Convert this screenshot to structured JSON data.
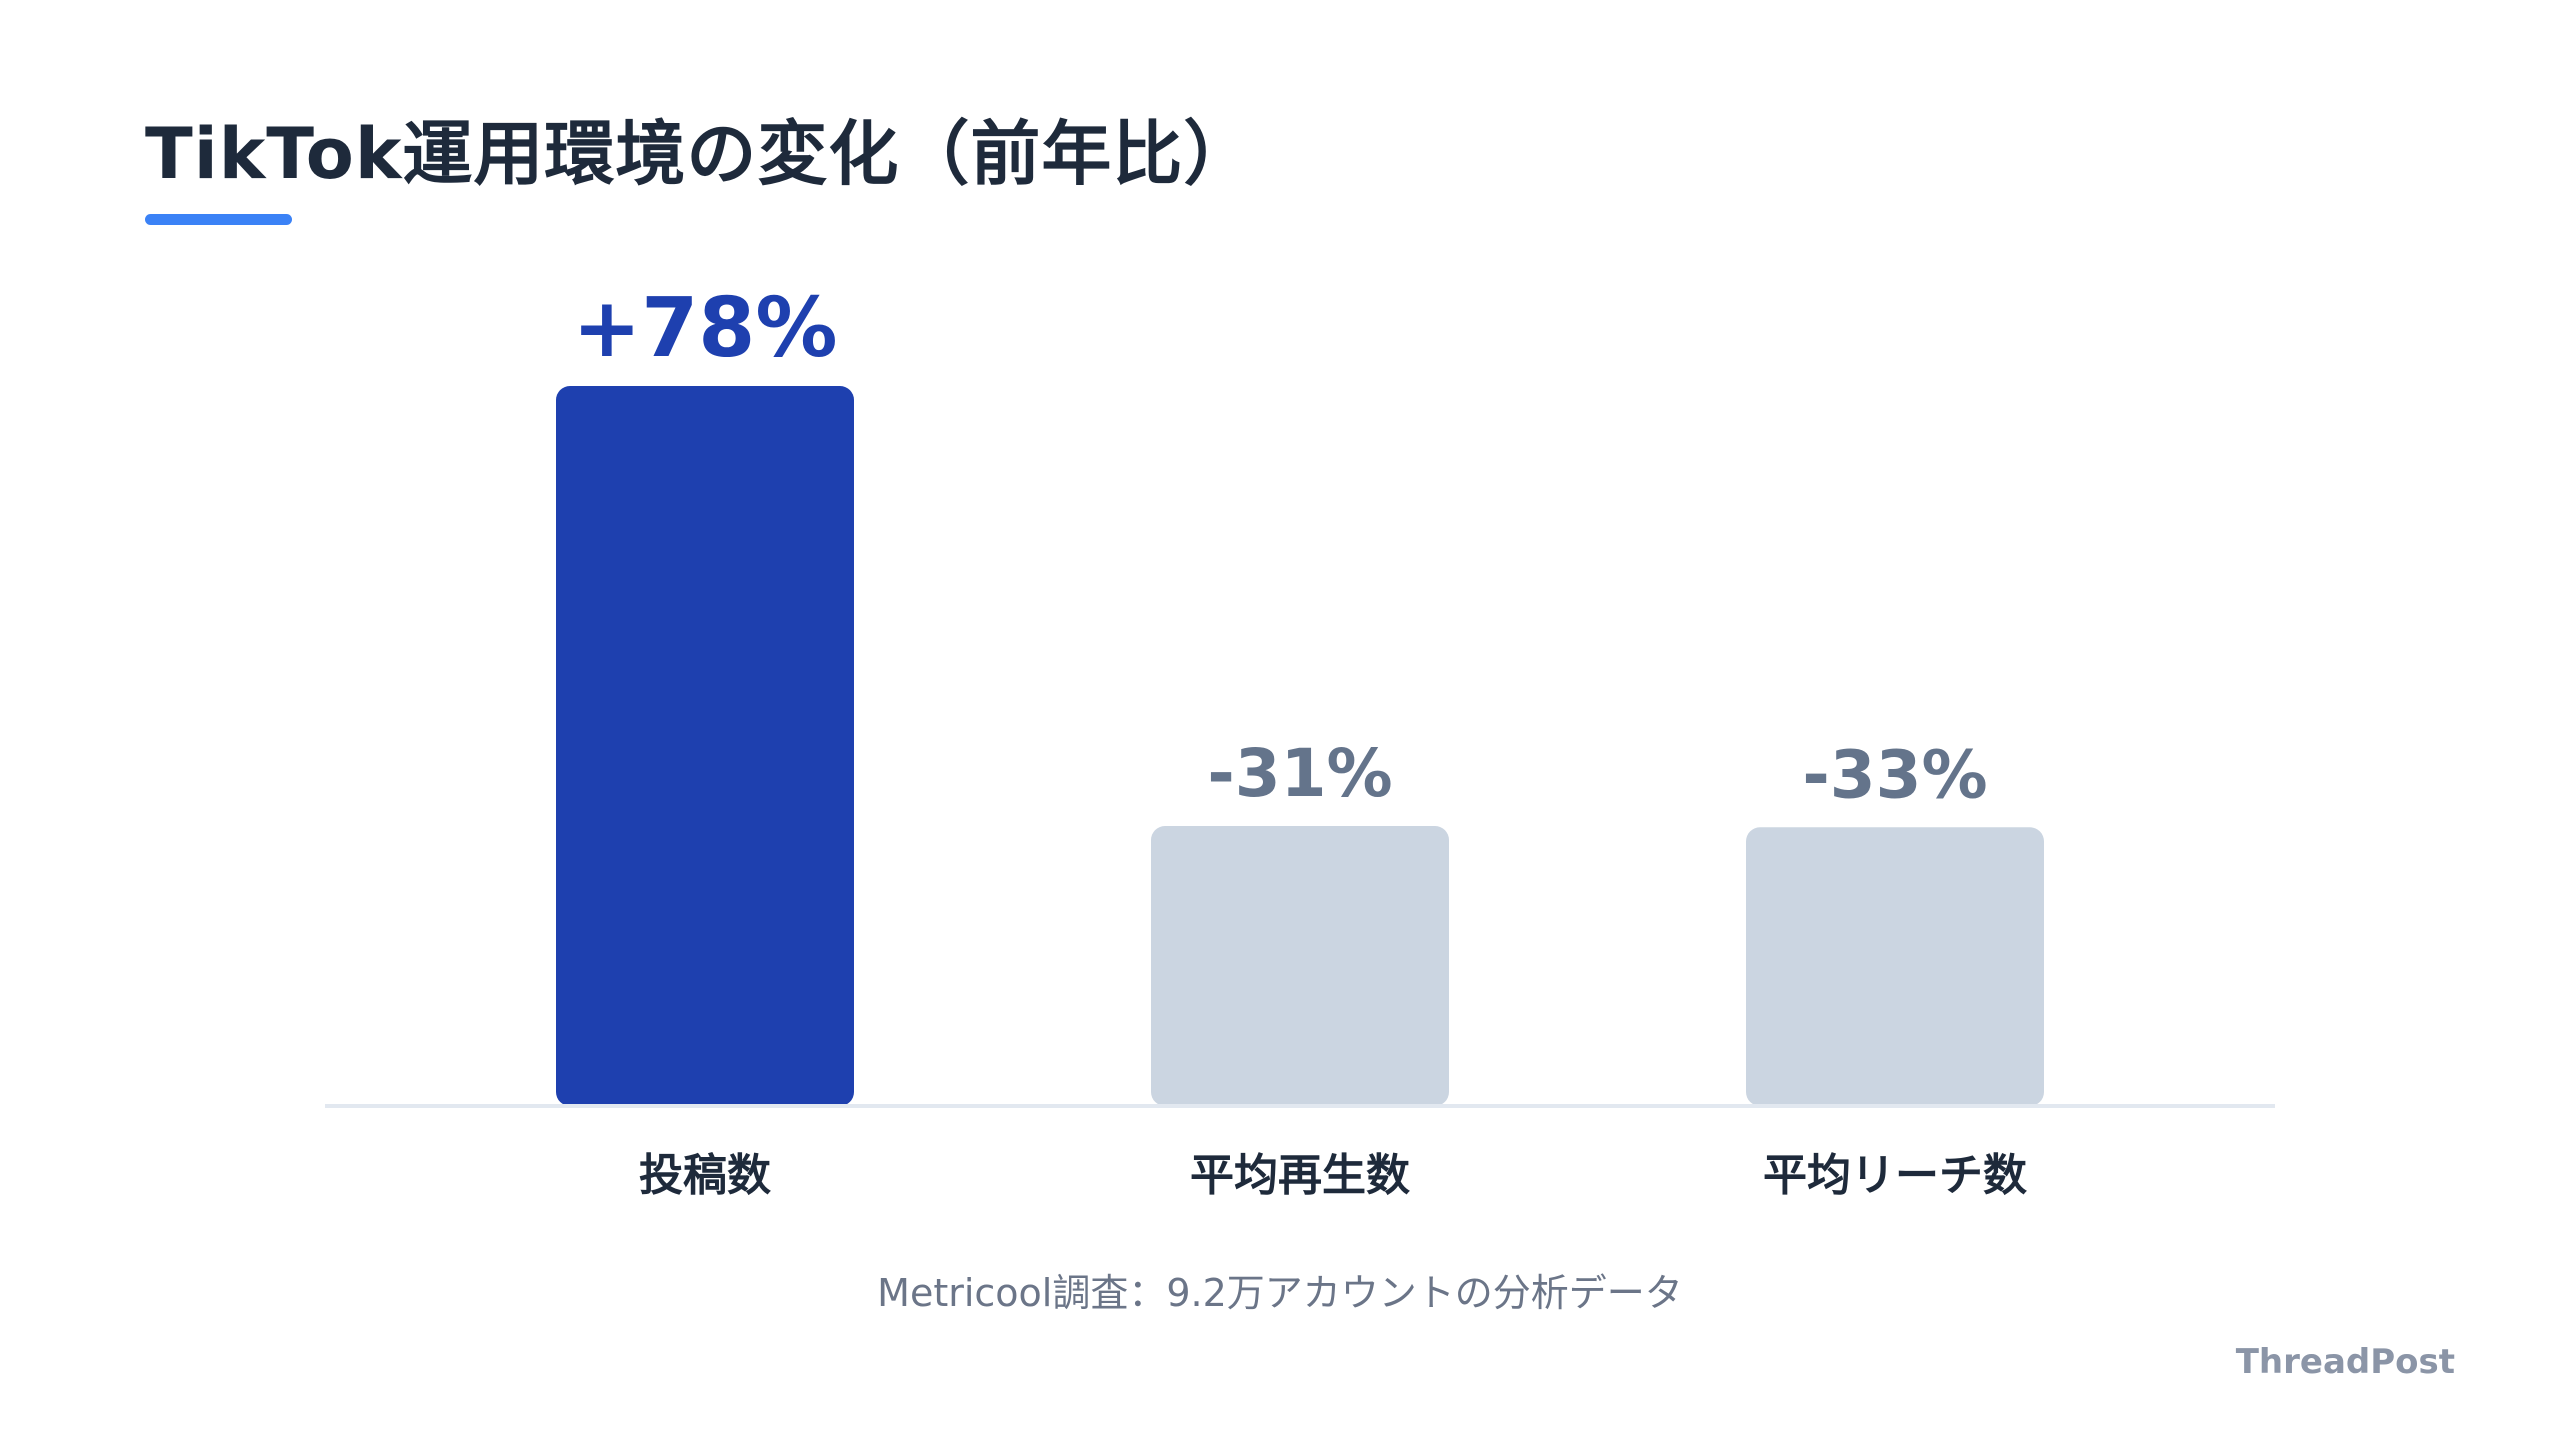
{
  "title": "TikTok運用環境の変化（前年比）",
  "source_note": "Metricool調査：9.2万アカウントの分析データ",
  "brand": "ThreadPost",
  "colors": {
    "highlight_bar": "#1e40af",
    "muted_bar": "#cbd5e1",
    "highlight_label": "#1e40af",
    "muted_label": "#64748b",
    "accent": "#3b82f6",
    "baseline": "#e2e8f0"
  },
  "chart_data": {
    "type": "bar",
    "title": "TikTok運用環境の変化（前年比）",
    "categories": [
      "投稿数",
      "平均再生数",
      "平均リーチ数"
    ],
    "values": [
      78,
      -31,
      -33
    ],
    "value_labels": [
      "+78%",
      "-31%",
      "-33%"
    ],
    "highlight": [
      true,
      false,
      false
    ],
    "xlabel": "",
    "ylabel": "",
    "grid": false,
    "legend": "none"
  }
}
